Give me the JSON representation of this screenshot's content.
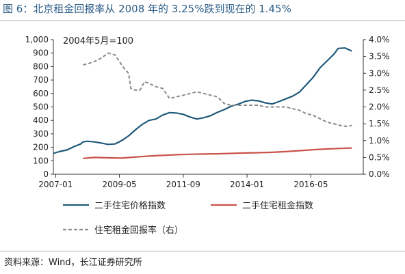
{
  "title": "图 6：北京租金回报率从 2008 年的 3.25%跌到现在的 1.45%",
  "source": "资料来源：Wind，长江证券研究所",
  "colors": {
    "price": "#1f5a7a",
    "rent": "#c9524a",
    "yield": "#8a8a8a",
    "title": "#2c5d87"
  },
  "chart_data": {
    "type": "line",
    "annotation": "2004年5月=100",
    "x_range": [
      "2006-12",
      "2018-04"
    ],
    "x_ticks": [
      "2007-01",
      "2009-05",
      "2011-09",
      "2014-01",
      "2016-05"
    ],
    "y_left": {
      "ticks": [
        "0",
        "100",
        "200",
        "300",
        "400",
        "500",
        "600",
        "700",
        "800",
        "900",
        "1,000"
      ],
      "range": [
        0,
        1000
      ]
    },
    "y_right": {
      "ticks": [
        "0.0%",
        "0.5%",
        "1.0%",
        "1.5%",
        "2.0%",
        "2.5%",
        "3.0%",
        "3.5%",
        "4.0%"
      ],
      "range": [
        0,
        4.0
      ]
    },
    "grid": false,
    "legend_position": "bottom",
    "series": [
      {
        "name": "二手住宅价格指数",
        "axis": "left",
        "style": "solid",
        "points": [
          [
            "2006-12",
            155
          ],
          [
            "2007-03",
            170
          ],
          [
            "2007-06",
            180
          ],
          [
            "2007-09",
            205
          ],
          [
            "2007-12",
            225
          ],
          [
            "2008-01",
            240
          ],
          [
            "2008-03",
            245
          ],
          [
            "2008-06",
            240
          ],
          [
            "2008-09",
            232
          ],
          [
            "2008-12",
            222
          ],
          [
            "2009-03",
            225
          ],
          [
            "2009-06",
            250
          ],
          [
            "2009-09",
            285
          ],
          [
            "2009-12",
            330
          ],
          [
            "2010-03",
            370
          ],
          [
            "2010-06",
            400
          ],
          [
            "2010-09",
            410
          ],
          [
            "2010-12",
            440
          ],
          [
            "2011-03",
            458
          ],
          [
            "2011-06",
            455
          ],
          [
            "2011-09",
            445
          ],
          [
            "2011-12",
            425
          ],
          [
            "2012-03",
            410
          ],
          [
            "2012-06",
            420
          ],
          [
            "2012-09",
            435
          ],
          [
            "2012-12",
            460
          ],
          [
            "2013-03",
            480
          ],
          [
            "2013-06",
            505
          ],
          [
            "2013-09",
            520
          ],
          [
            "2013-12",
            540
          ],
          [
            "2014-03",
            550
          ],
          [
            "2014-06",
            545
          ],
          [
            "2014-09",
            530
          ],
          [
            "2014-12",
            522
          ],
          [
            "2015-03",
            540
          ],
          [
            "2015-06",
            560
          ],
          [
            "2015-09",
            580
          ],
          [
            "2015-12",
            610
          ],
          [
            "2016-03",
            665
          ],
          [
            "2016-06",
            720
          ],
          [
            "2016-09",
            790
          ],
          [
            "2016-12",
            840
          ],
          [
            "2017-03",
            890
          ],
          [
            "2017-05",
            935
          ],
          [
            "2017-08",
            938
          ],
          [
            "2017-11",
            915
          ]
        ]
      },
      {
        "name": "二手住宅租金指数",
        "axis": "left",
        "style": "solid",
        "points": [
          [
            "2008-01",
            118
          ],
          [
            "2008-06",
            125
          ],
          [
            "2008-12",
            122
          ],
          [
            "2009-06",
            120
          ],
          [
            "2009-12",
            128
          ],
          [
            "2010-06",
            135
          ],
          [
            "2010-12",
            140
          ],
          [
            "2011-06",
            145
          ],
          [
            "2011-12",
            148
          ],
          [
            "2012-06",
            150
          ],
          [
            "2012-12",
            152
          ],
          [
            "2013-06",
            155
          ],
          [
            "2013-12",
            158
          ],
          [
            "2014-06",
            160
          ],
          [
            "2014-12",
            163
          ],
          [
            "2015-06",
            168
          ],
          [
            "2015-12",
            175
          ],
          [
            "2016-06",
            182
          ],
          [
            "2016-12",
            188
          ],
          [
            "2017-06",
            192
          ],
          [
            "2017-11",
            195
          ]
        ]
      },
      {
        "name": "住宅租金回报率（右）",
        "axis": "right",
        "style": "dashed",
        "points": [
          [
            "2008-01",
            3.25
          ],
          [
            "2008-03",
            3.28
          ],
          [
            "2008-06",
            3.35
          ],
          [
            "2008-09",
            3.45
          ],
          [
            "2008-12",
            3.6
          ],
          [
            "2009-03",
            3.55
          ],
          [
            "2009-05",
            3.35
          ],
          [
            "2009-07",
            3.15
          ],
          [
            "2009-09",
            3.0
          ],
          [
            "2009-10",
            2.55
          ],
          [
            "2009-12",
            2.5
          ],
          [
            "2010-02",
            2.5
          ],
          [
            "2010-04",
            2.75
          ],
          [
            "2010-06",
            2.7
          ],
          [
            "2010-09",
            2.6
          ],
          [
            "2010-12",
            2.55
          ],
          [
            "2011-03",
            2.25
          ],
          [
            "2011-06",
            2.3
          ],
          [
            "2011-09",
            2.35
          ],
          [
            "2011-12",
            2.4
          ],
          [
            "2012-03",
            2.45
          ],
          [
            "2012-06",
            2.4
          ],
          [
            "2012-09",
            2.35
          ],
          [
            "2012-12",
            2.3
          ],
          [
            "2013-03",
            2.1
          ],
          [
            "2013-06",
            2.05
          ],
          [
            "2013-09",
            2.05
          ],
          [
            "2013-12",
            2.05
          ],
          [
            "2014-03",
            2.05
          ],
          [
            "2014-06",
            2.05
          ],
          [
            "2014-09",
            2.0
          ],
          [
            "2014-12",
            2.0
          ],
          [
            "2015-03",
            2.0
          ],
          [
            "2015-06",
            2.0
          ],
          [
            "2015-09",
            1.95
          ],
          [
            "2015-12",
            1.9
          ],
          [
            "2016-03",
            1.8
          ],
          [
            "2016-06",
            1.75
          ],
          [
            "2016-09",
            1.65
          ],
          [
            "2016-12",
            1.55
          ],
          [
            "2017-03",
            1.5
          ],
          [
            "2017-06",
            1.45
          ],
          [
            "2017-09",
            1.42
          ],
          [
            "2017-11",
            1.45
          ]
        ]
      }
    ]
  }
}
